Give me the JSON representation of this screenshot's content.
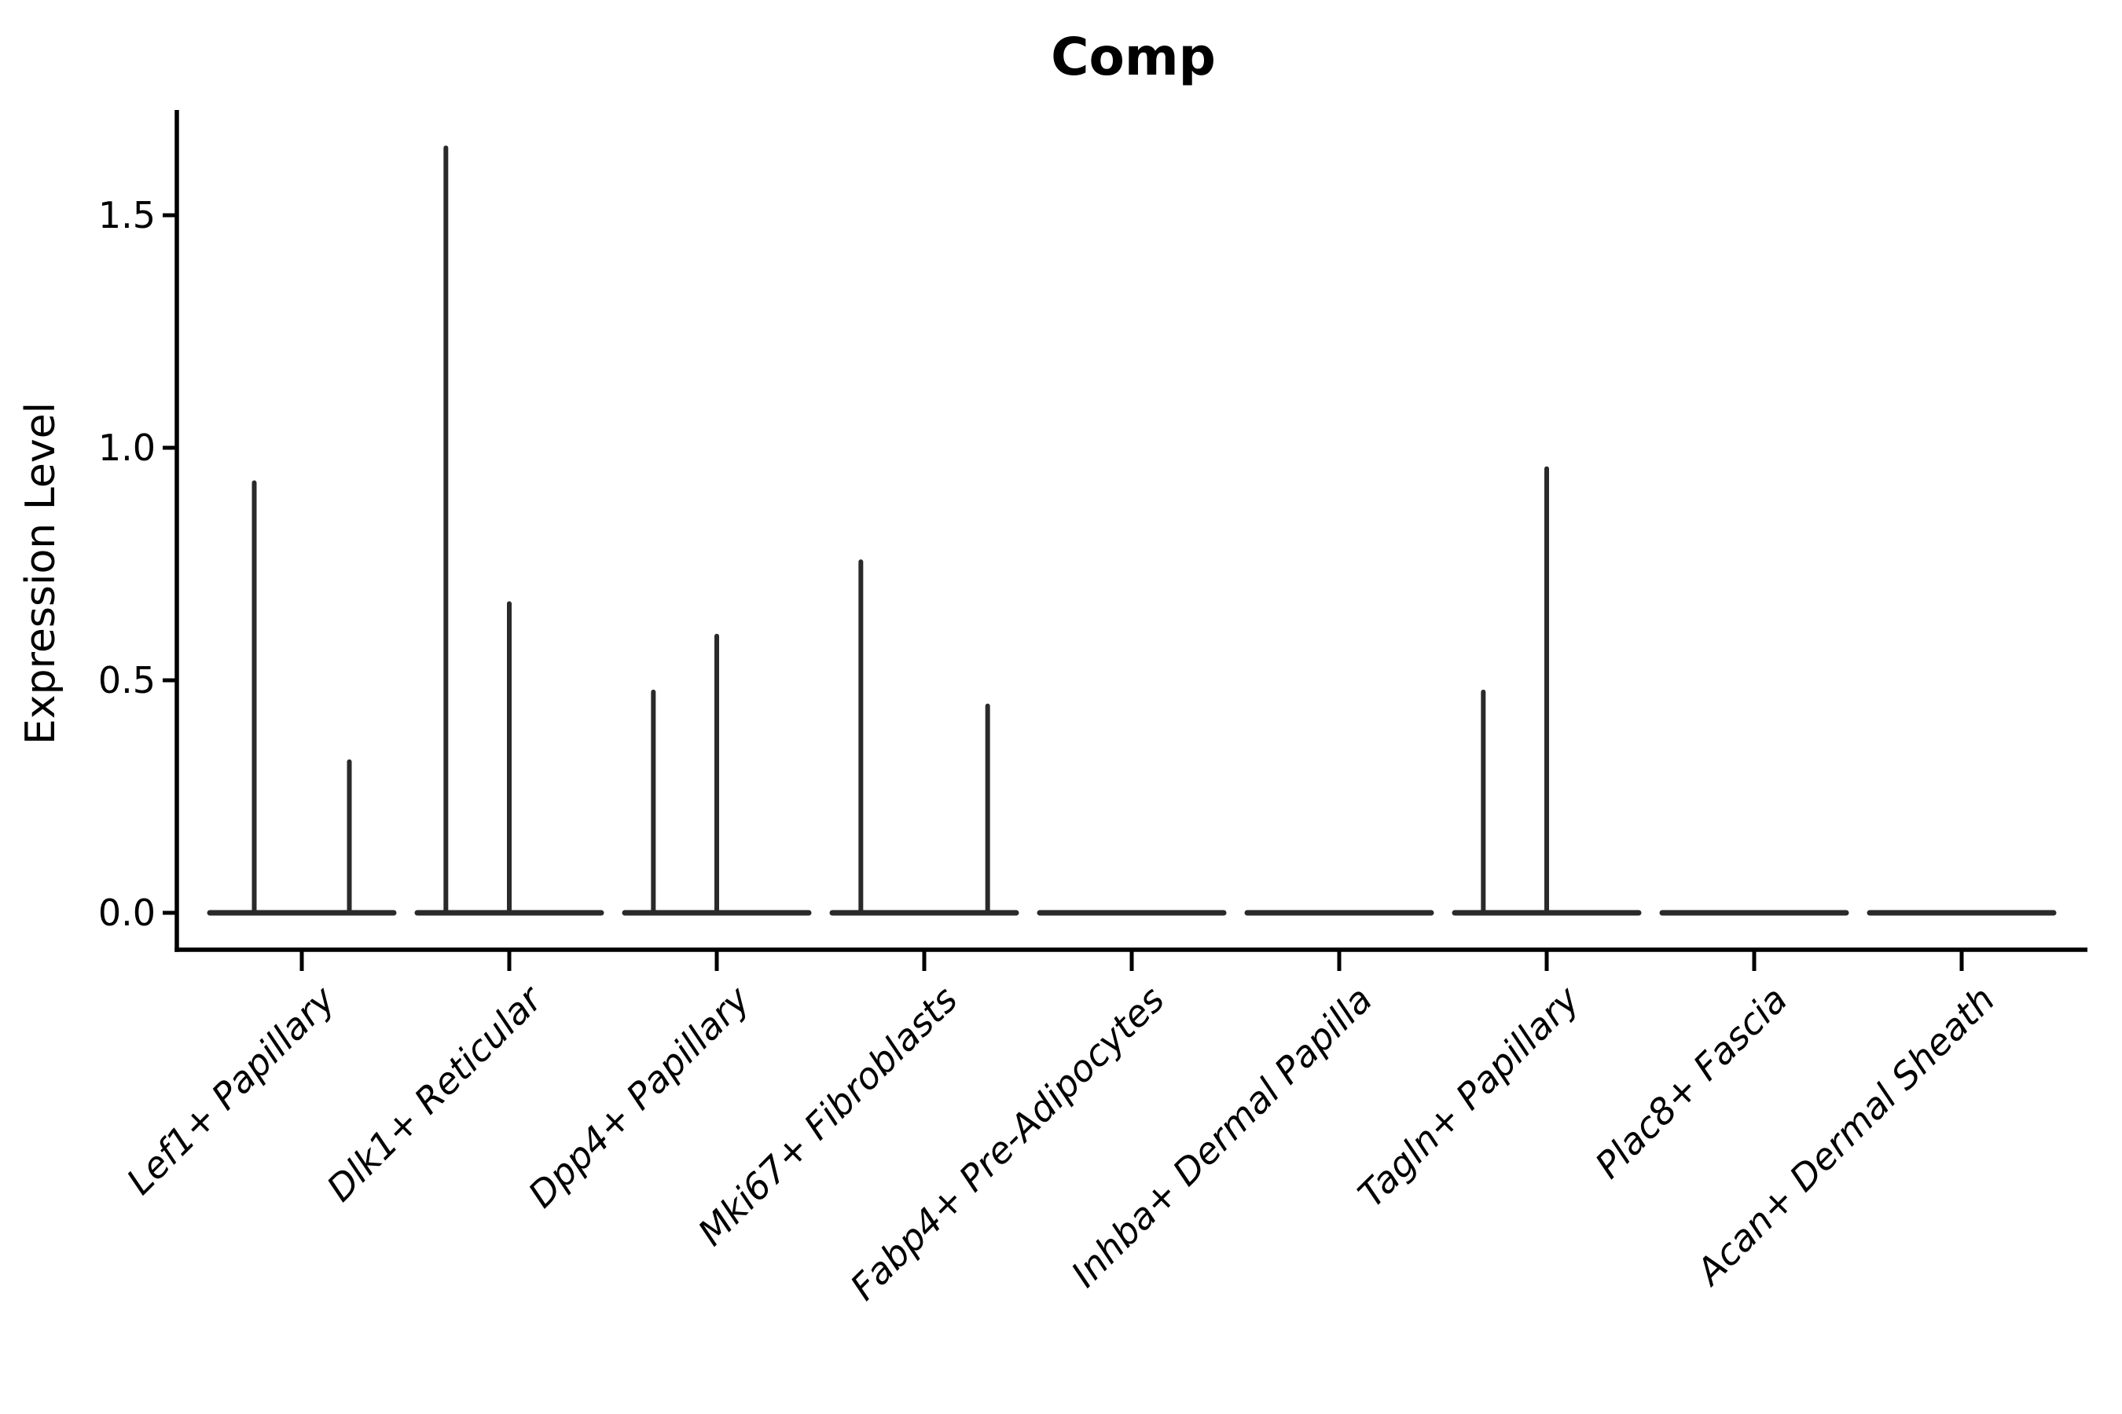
{
  "chart_data": {
    "type": "violin",
    "title": "Comp",
    "ylabel": "Expression Level",
    "xlabel": "",
    "yticks": [
      0.0,
      0.5,
      1.0,
      1.5
    ],
    "ytick_labels": [
      "0.0",
      "0.5",
      "1.0",
      "1.5"
    ],
    "ylim": [
      -0.08,
      1.73
    ],
    "grid": false,
    "legend": "none",
    "categories": [
      {
        "label": "Lef1+ Papillary",
        "violins": [
          {
            "max": 0.93
          },
          {
            "max": 0.33
          }
        ]
      },
      {
        "label": "Dlk1+ Reticular",
        "violins": [
          {
            "max": 1.65
          },
          {
            "max": 0.67
          },
          {
            "max": 0
          }
        ]
      },
      {
        "label": "Dpp4+ Papillary",
        "violins": [
          {
            "max": 0.48
          },
          {
            "max": 0.6
          },
          {
            "max": 0
          }
        ]
      },
      {
        "label": "Mki67+ Fibroblasts",
        "violins": [
          {
            "max": 0.76
          },
          {
            "max": 0
          },
          {
            "max": 0.45
          }
        ]
      },
      {
        "label": "Fabp4+ Pre-Adipocytes",
        "violins": [
          {
            "max": 0
          },
          {
            "max": 0
          },
          {
            "max": 0
          }
        ]
      },
      {
        "label": "Inhba+ Dermal Papilla",
        "violins": [
          {
            "max": 0
          },
          {
            "max": 0
          },
          {
            "max": 0
          }
        ]
      },
      {
        "label": "Tagln+ Papillary",
        "violins": [
          {
            "max": 0.48
          },
          {
            "max": 0.96
          },
          {
            "max": 0
          }
        ]
      },
      {
        "label": "Plac8+ Fascia",
        "violins": [
          {
            "max": 0
          },
          {
            "max": 0
          },
          {
            "max": 0
          }
        ]
      },
      {
        "label": "Acan+ Dermal Sheath",
        "violins": [
          {
            "max": 0
          },
          {
            "max": 0
          },
          {
            "max": 0
          }
        ]
      }
    ],
    "colors": {
      "violin_line": "#2a2a2a",
      "spine": "#000000",
      "text": "#000000",
      "background": "#ffffff"
    }
  }
}
